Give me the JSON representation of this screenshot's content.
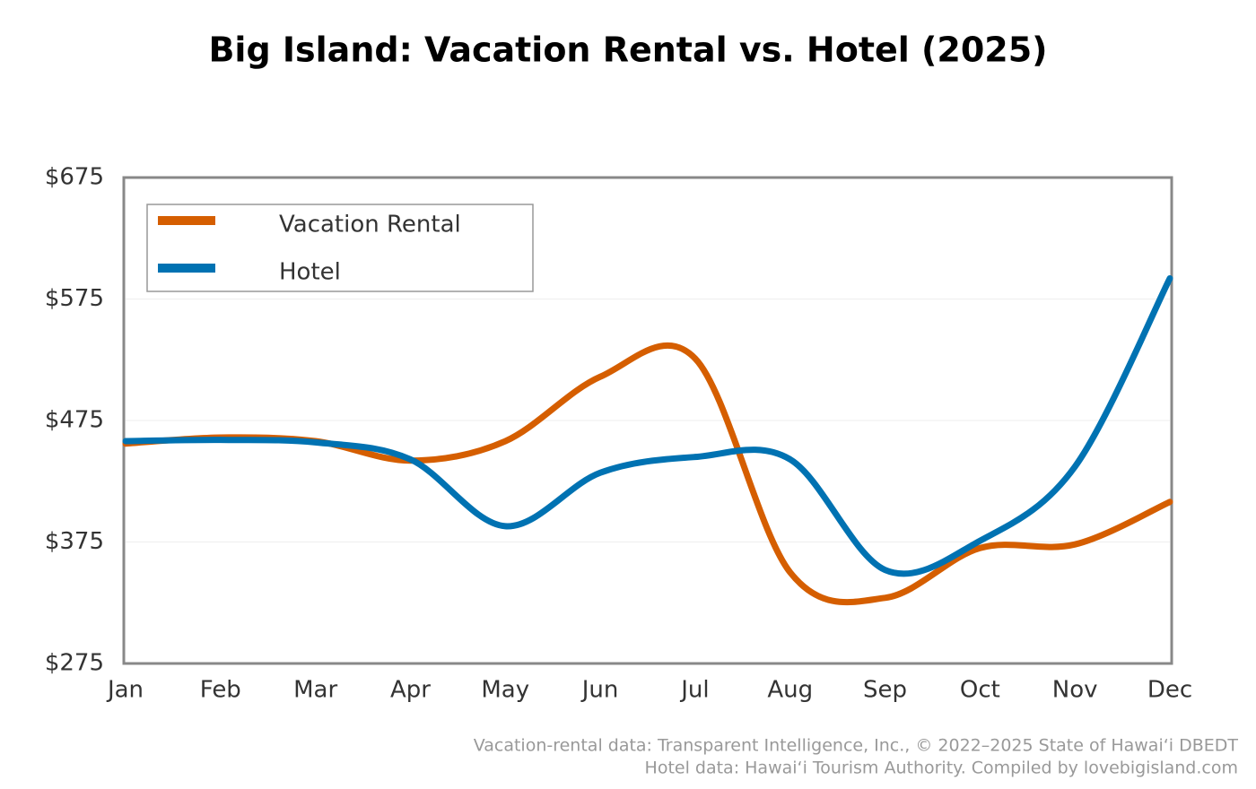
{
  "chart_data": {
    "type": "line",
    "title": "Big Island: Vacation Rental vs. Hotel (2025)",
    "categories": [
      "Jan",
      "Feb",
      "Mar",
      "Apr",
      "May",
      "Jun",
      "Jul",
      "Aug",
      "Sep",
      "Oct",
      "Nov",
      "Dec"
    ],
    "series": [
      {
        "name": "Vacation Rental",
        "color": "#d55e00",
        "values": [
          456,
          461,
          458,
          442,
          458,
          511,
          526,
          350,
          329,
          370,
          373,
          408
        ]
      },
      {
        "name": "Hotel",
        "color": "#0072b2",
        "values": [
          458,
          459,
          457,
          443,
          388,
          432,
          445,
          443,
          352,
          376,
          437,
          592
        ]
      }
    ],
    "ylim": [
      275,
      675
    ],
    "yticks": [
      {
        "value": 275,
        "label": "$275"
      },
      {
        "value": 375,
        "label": "$375"
      },
      {
        "value": 475,
        "label": "$475"
      },
      {
        "value": 575,
        "label": "$575"
      },
      {
        "value": 675,
        "label": "$675"
      }
    ],
    "grid": true,
    "legend": "upper left",
    "source": [
      "Vacation-rental data: Transparent Intelligence, Inc., © 2022–2025 State of Hawaiʻi DBEDT",
      "Hotel data: Hawaiʻi Tourism Authority. Compiled by lovebigisland.com"
    ]
  }
}
